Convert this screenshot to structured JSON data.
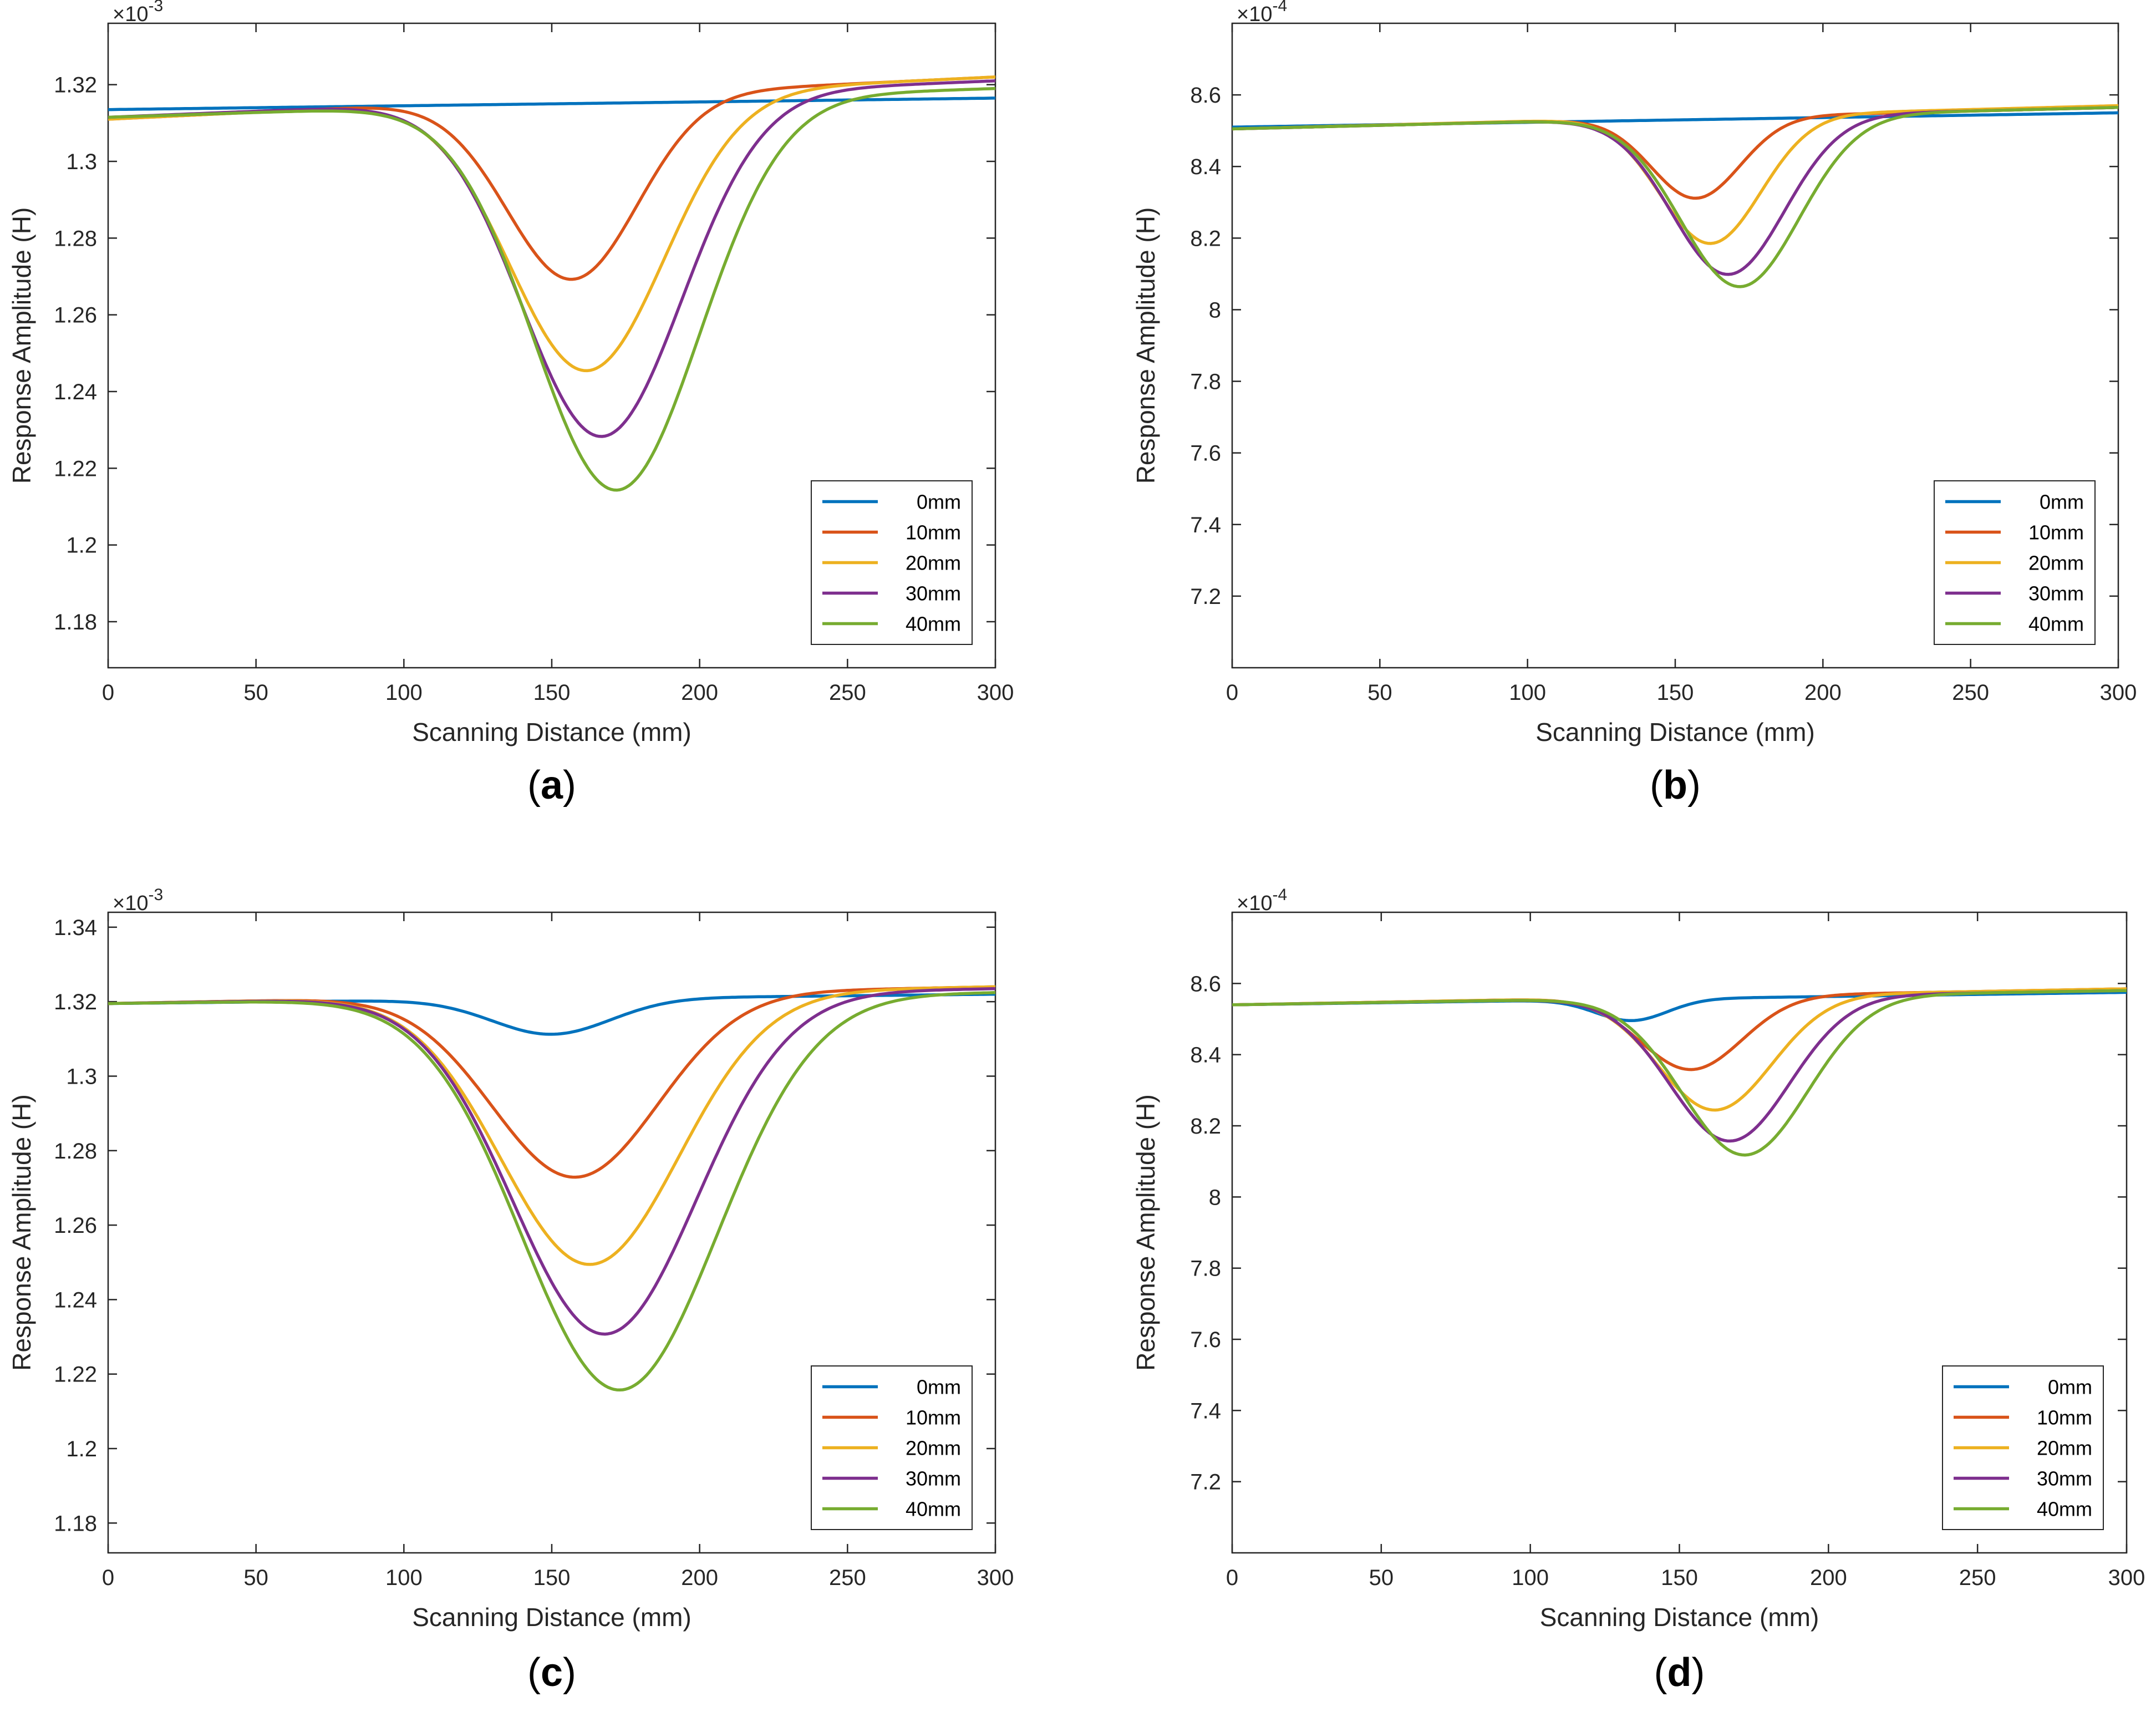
{
  "figure": {
    "panels": [
      {
        "caption": "(a)",
        "caption_letter": "a",
        "exponent_base": "×10",
        "exponent_power": "-3",
        "chart_data": {
          "type": "line",
          "xlabel": "Scanning Distance (mm)",
          "ylabel": "Response Amplitude (H)",
          "xlim": [
            0,
            300
          ],
          "ylim": [
            1.168,
            1.336
          ],
          "xticks": [
            0,
            50,
            100,
            150,
            200,
            250,
            300
          ],
          "xtick_labels": [
            "0",
            "50",
            "100",
            "150",
            "200",
            "250",
            "300"
          ],
          "yticks": [
            1.18,
            1.2,
            1.22,
            1.24,
            1.26,
            1.28,
            1.3,
            1.32
          ],
          "ytick_labels": [
            "1.18",
            "1.2",
            "1.22",
            "1.24",
            "1.26",
            "1.28",
            "1.3",
            "1.32"
          ],
          "grid": false,
          "legend_position": "bottom-right",
          "series": [
            {
              "name": "0mm",
              "color": "#0072BD",
              "baseline_start": 1.3135,
              "baseline_end": 1.3165,
              "dip_center": 150,
              "dip_depth": 0,
              "dip_width": 1
            },
            {
              "name": "10mm",
              "color": "#D95319",
              "baseline_start": 1.311,
              "baseline_end": 1.322,
              "dip_center": 157,
              "dip_depth": 0.0475,
              "dip_width": 22
            },
            {
              "name": "20mm",
              "color": "#EDB120",
              "baseline_start": 1.311,
              "baseline_end": 1.322,
              "dip_center": 162,
              "dip_depth": 0.0715,
              "dip_width": 26
            },
            {
              "name": "30mm",
              "color": "#7E2F8E",
              "baseline_start": 1.3115,
              "baseline_end": 1.321,
              "dip_center": 167,
              "dip_depth": 0.0885,
              "dip_width": 27
            },
            {
              "name": "40mm",
              "color": "#77AC30",
              "baseline_start": 1.3115,
              "baseline_end": 1.319,
              "dip_center": 172,
              "dip_depth": 0.1015,
              "dip_width": 28
            }
          ]
        }
      },
      {
        "caption": "(b)",
        "caption_letter": "b",
        "exponent_base": "×10",
        "exponent_power": "-4",
        "chart_data": {
          "type": "line",
          "xlabel": "Scanning Distance (mm)",
          "ylabel": "Response Amplitude (H)",
          "xlim": [
            0,
            300
          ],
          "ylim": [
            7.0,
            8.8
          ],
          "xticks": [
            0,
            50,
            100,
            150,
            200,
            250,
            300
          ],
          "xtick_labels": [
            "0",
            "50",
            "100",
            "150",
            "200",
            "250",
            "300"
          ],
          "yticks": [
            7.2,
            7.4,
            7.6,
            7.8,
            8.0,
            8.2,
            8.4,
            8.6
          ],
          "ytick_labels": [
            "7.2",
            "7.4",
            "7.6",
            "7.8",
            "8",
            "8.2",
            "8.4",
            "8.6"
          ],
          "grid": false,
          "legend_position": "bottom-right",
          "series": [
            {
              "name": "0mm",
              "color": "#0072BD",
              "baseline_start": 8.51,
              "baseline_end": 8.55,
              "dip_center": 150,
              "dip_depth": 0,
              "dip_width": 1
            },
            {
              "name": "10mm",
              "color": "#D95319",
              "baseline_start": 8.505,
              "baseline_end": 8.565,
              "dip_center": 157,
              "dip_depth": 0.225,
              "dip_width": 15
            },
            {
              "name": "20mm",
              "color": "#EDB120",
              "baseline_start": 8.505,
              "baseline_end": 8.57,
              "dip_center": 162,
              "dip_depth": 0.355,
              "dip_width": 17
            },
            {
              "name": "30mm",
              "color": "#7E2F8E",
              "baseline_start": 8.505,
              "baseline_end": 8.565,
              "dip_center": 168,
              "dip_depth": 0.44,
              "dip_width": 19
            },
            {
              "name": "40mm",
              "color": "#77AC30",
              "baseline_start": 8.505,
              "baseline_end": 8.565,
              "dip_center": 172,
              "dip_depth": 0.475,
              "dip_width": 20
            }
          ]
        }
      },
      {
        "caption": "(c)",
        "caption_letter": "c",
        "exponent_base": "×10",
        "exponent_power": "-3",
        "chart_data": {
          "type": "line",
          "xlabel": "Scanning Distance (mm)",
          "ylabel": "Response Amplitude (H)",
          "xlim": [
            0,
            300
          ],
          "ylim": [
            1.172,
            1.344
          ],
          "xticks": [
            0,
            50,
            100,
            150,
            200,
            250,
            300
          ],
          "xtick_labels": [
            "0",
            "50",
            "100",
            "150",
            "200",
            "250",
            "300"
          ],
          "yticks": [
            1.18,
            1.2,
            1.22,
            1.24,
            1.26,
            1.28,
            1.3,
            1.32,
            1.34
          ],
          "ytick_labels": [
            "1.18",
            "1.2",
            "1.22",
            "1.24",
            "1.26",
            "1.28",
            "1.3",
            "1.32",
            "1.34"
          ],
          "grid": false,
          "legend_position": "bottom-right",
          "series": [
            {
              "name": "0mm",
              "color": "#0072BD",
              "baseline_start": 1.3195,
              "baseline_end": 1.322,
              "dip_center": 150,
              "dip_depth": 0.0095,
              "dip_width": 20
            },
            {
              "name": "10mm",
              "color": "#D95319",
              "baseline_start": 1.3195,
              "baseline_end": 1.324,
              "dip_center": 158,
              "dip_depth": 0.049,
              "dip_width": 28
            },
            {
              "name": "20mm",
              "color": "#EDB120",
              "baseline_start": 1.3195,
              "baseline_end": 1.324,
              "dip_center": 163,
              "dip_depth": 0.0725,
              "dip_width": 30
            },
            {
              "name": "30mm",
              "color": "#7E2F8E",
              "baseline_start": 1.3195,
              "baseline_end": 1.3235,
              "dip_center": 168,
              "dip_depth": 0.091,
              "dip_width": 31
            },
            {
              "name": "40mm",
              "color": "#77AC30",
              "baseline_start": 1.3195,
              "baseline_end": 1.3225,
              "dip_center": 173,
              "dip_depth": 0.1055,
              "dip_width": 33
            }
          ]
        }
      },
      {
        "caption": "(d)",
        "caption_letter": "d",
        "exponent_base": "×10",
        "exponent_power": "-4",
        "chart_data": {
          "type": "line",
          "xlabel": "Scanning Distance (mm)",
          "ylabel": "Response Amplitude (H)",
          "xlim": [
            0,
            300
          ],
          "ylim": [
            7.0,
            8.8
          ],
          "xticks": [
            0,
            50,
            100,
            150,
            200,
            250,
            300
          ],
          "xtick_labels": [
            "0",
            "50",
            "100",
            "150",
            "200",
            "250",
            "300"
          ],
          "yticks": [
            7.2,
            7.4,
            7.6,
            7.8,
            8.0,
            8.2,
            8.4,
            8.6
          ],
          "ytick_labels": [
            "7.2",
            "7.4",
            "7.6",
            "7.8",
            "8",
            "8.2",
            "8.4",
            "8.6"
          ],
          "grid": false,
          "legend_position": "bottom-right",
          "series": [
            {
              "name": "0mm",
              "color": "#0072BD",
              "baseline_start": 8.54,
              "baseline_end": 8.575,
              "dip_center": 134,
              "dip_depth": 0.06,
              "dip_width": 12
            },
            {
              "name": "10mm",
              "color": "#D95319",
              "baseline_start": 8.54,
              "baseline_end": 8.585,
              "dip_center": 154,
              "dip_depth": 0.205,
              "dip_width": 17
            },
            {
              "name": "20mm",
              "color": "#EDB120",
              "baseline_start": 8.54,
              "baseline_end": 8.585,
              "dip_center": 162,
              "dip_depth": 0.32,
              "dip_width": 19
            },
            {
              "name": "30mm",
              "color": "#7E2F8E",
              "baseline_start": 8.54,
              "baseline_end": 8.58,
              "dip_center": 167,
              "dip_depth": 0.405,
              "dip_width": 20
            },
            {
              "name": "40mm",
              "color": "#77AC30",
              "baseline_start": 8.54,
              "baseline_end": 8.58,
              "dip_center": 172,
              "dip_depth": 0.445,
              "dip_width": 21
            }
          ]
        }
      }
    ]
  }
}
